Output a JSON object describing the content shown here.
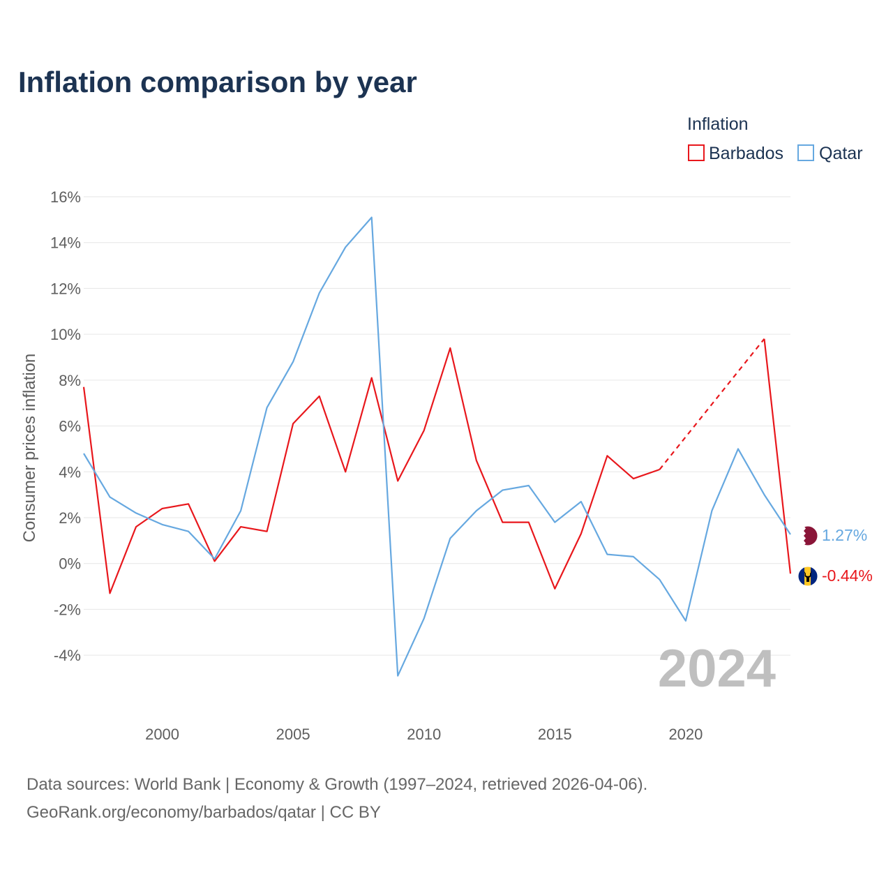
{
  "chart_data": {
    "type": "line",
    "title": "Inflation comparison by year",
    "legend_title": "Inflation",
    "legend_position": "top-right",
    "xlabel": "",
    "ylabel": "Consumer prices inflation",
    "xlim": [
      1997,
      2024
    ],
    "ylim": [
      -5,
      16
    ],
    "x_ticks": [
      2000,
      2005,
      2010,
      2015,
      2020
    ],
    "y_ticks": [
      -4,
      -2,
      0,
      2,
      4,
      6,
      8,
      10,
      12,
      14,
      16
    ],
    "y_tick_labels": [
      "-4%",
      "-2%",
      "0%",
      "2%",
      "4%",
      "6%",
      "8%",
      "10%",
      "12%",
      "14%",
      "16%"
    ],
    "x": [
      1997,
      1998,
      1999,
      2000,
      2001,
      2002,
      2003,
      2004,
      2005,
      2006,
      2007,
      2008,
      2009,
      2010,
      2011,
      2012,
      2013,
      2014,
      2015,
      2016,
      2017,
      2018,
      2019,
      2020,
      2021,
      2022,
      2023,
      2024
    ],
    "series": [
      {
        "name": "Barbados",
        "color": "#e8171c",
        "values": [
          7.7,
          -1.3,
          1.6,
          2.4,
          2.6,
          0.1,
          1.6,
          1.4,
          6.1,
          7.3,
          4.0,
          8.1,
          3.6,
          5.8,
          9.4,
          4.5,
          1.8,
          1.8,
          -1.1,
          1.3,
          4.7,
          3.7,
          4.1,
          null,
          null,
          null,
          9.8,
          -0.44
        ],
        "gap_style": "dashed",
        "end_label": "-0.44%",
        "flag_icon": "barbados-flag-icon"
      },
      {
        "name": "Qatar",
        "color": "#66a8e0",
        "values": [
          4.8,
          2.9,
          2.2,
          1.7,
          1.4,
          0.2,
          2.3,
          6.8,
          8.8,
          11.8,
          13.8,
          15.1,
          -4.9,
          -2.4,
          1.1,
          2.3,
          3.2,
          3.4,
          1.8,
          2.7,
          0.4,
          0.3,
          -0.7,
          -2.5,
          2.3,
          5.0,
          3.0,
          1.27
        ],
        "end_label": "1.27%",
        "flag_icon": "qatar-flag-icon"
      }
    ],
    "year_watermark": "2024",
    "grid": true
  },
  "footer": {
    "source_line": "Data sources: World Bank | Economy & Growth (1997–2024, retrieved 2026-04-06).",
    "credit_line": "GeoRank.org/economy/barbados/qatar | CC BY"
  }
}
